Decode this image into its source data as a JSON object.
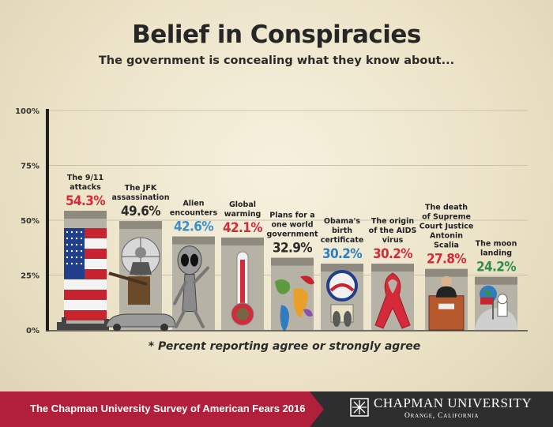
{
  "title": "Belief in Conspiracies",
  "subtitle": "The government is concealing what they know about...",
  "chart_data": {
    "type": "bar",
    "categories": [
      [
        "The 9/11",
        "attacks"
      ],
      [
        "The JFK",
        "assassination"
      ],
      [
        "Alien",
        "encounters"
      ],
      [
        "Global",
        "warming"
      ],
      [
        "Plans for a",
        "one world",
        "government"
      ],
      [
        "Obama's",
        "birth",
        "certificate"
      ],
      [
        "The origin",
        "of the AIDS",
        "virus"
      ],
      [
        "The death",
        "of Supreme",
        "Court Justice",
        "Antonin",
        "Scalia"
      ],
      [
        "The moon",
        "landing"
      ]
    ],
    "values": [
      54.3,
      49.6,
      42.6,
      42.1,
      32.9,
      30.2,
      30.2,
      27.8,
      24.2
    ],
    "value_labels": [
      "54.3%",
      "49.6%",
      "42.6%",
      "42.1%",
      "32.9%",
      "30.2%",
      "30.2%",
      "27.8%",
      "24.2%"
    ],
    "value_colors": [
      "#d42a3a",
      "#2b2b2b",
      "#3a8ec9",
      "#d42a3a",
      "#2b2b2b",
      "#2a7fc4",
      "#d42a3a",
      "#d42a3a",
      "#2f8f4a"
    ],
    "icons": [
      "us-flag-icon",
      "jfk-car-icon",
      "alien-icon",
      "thermometer-icon",
      "world-map-icon",
      "seal-footprints-icon",
      "red-ribbon-icon",
      "courtroom-icon",
      "moon-landing-icon"
    ],
    "y_ticks": [
      "0%",
      "25%",
      "50%",
      "75%",
      "100%"
    ],
    "ylim": [
      0,
      100
    ],
    "grid": true,
    "footnote": "* Percent reporting agree or strongly agree"
  },
  "footer": {
    "survey": "The Chapman University Survey of American Fears 2016",
    "university": "CHAPMAN UNIVERSITY",
    "location": "Orange, California"
  }
}
